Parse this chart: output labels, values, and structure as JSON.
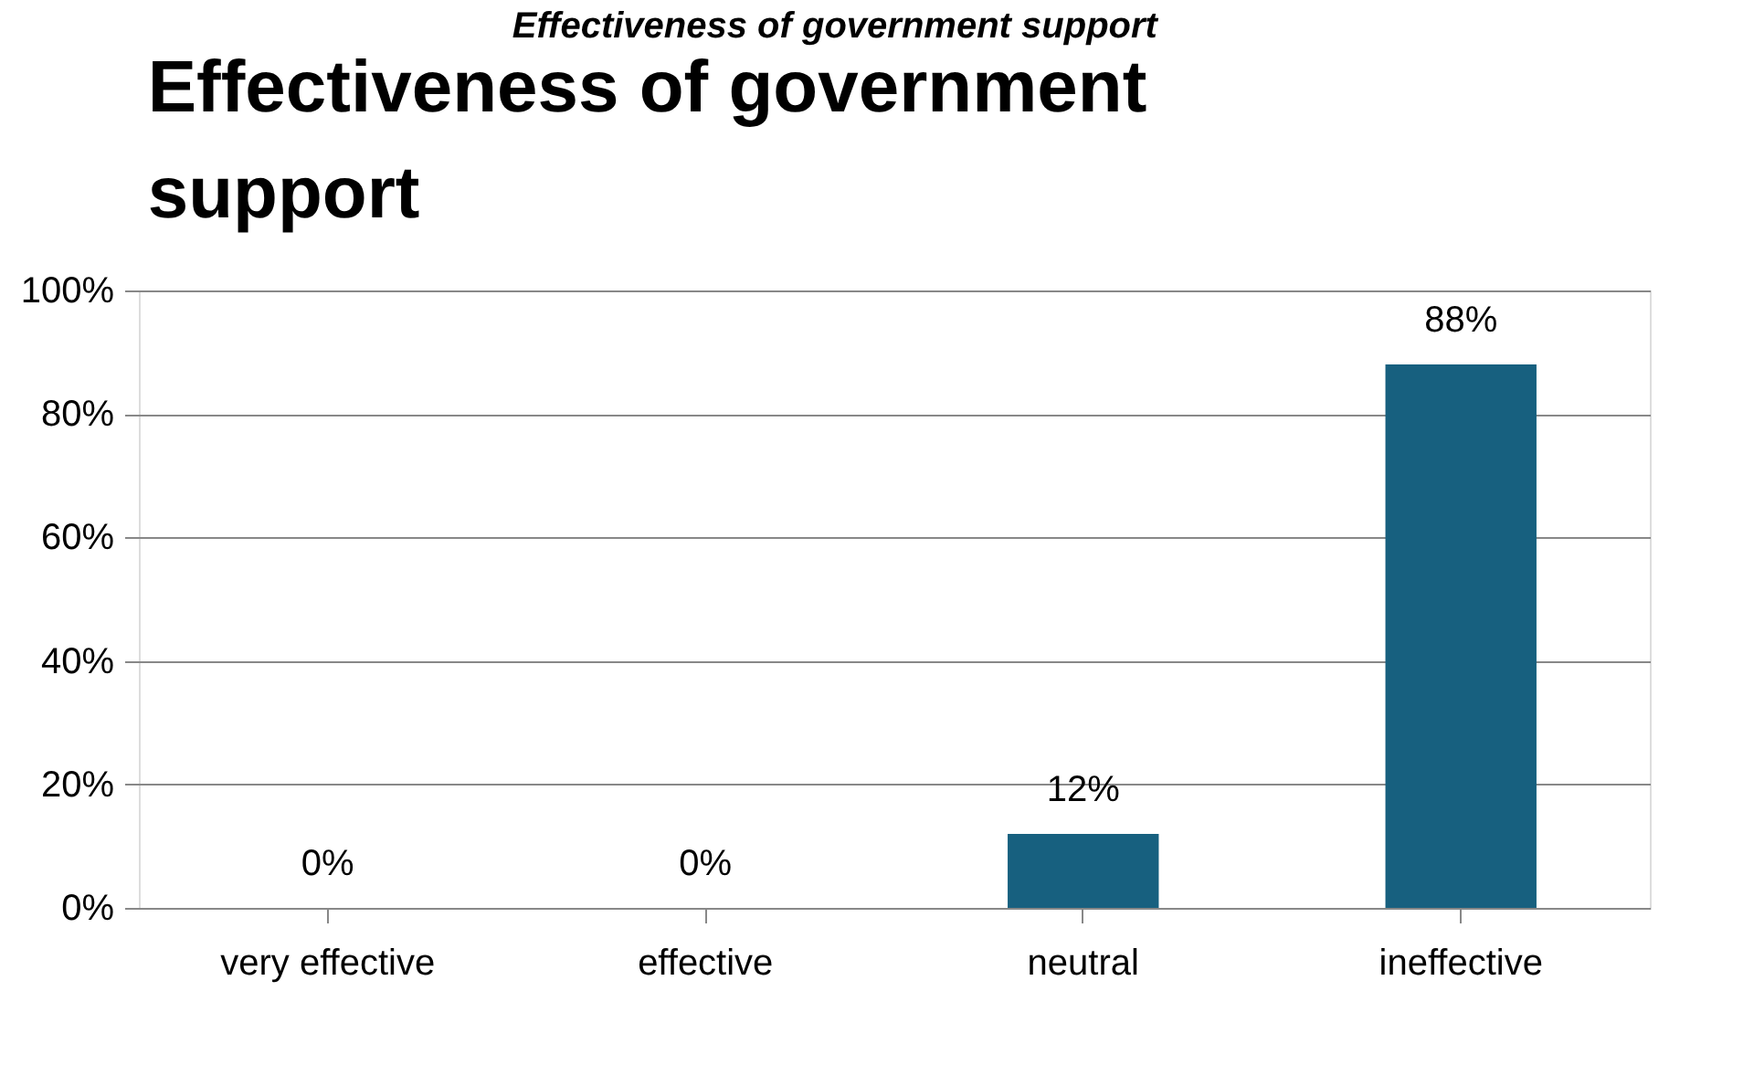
{
  "chart_data": {
    "type": "bar",
    "title": "Effectiveness of government support",
    "annotations": [
      "Effectiveness of government support"
    ],
    "categories": [
      "very effective",
      "effective",
      "neutral",
      "ineffective"
    ],
    "values": [
      0,
      0,
      12,
      88
    ],
    "color": "#17607f",
    "ylim": [
      0,
      100
    ],
    "yticks": [
      {
        "value": 0,
        "label": "0%"
      },
      {
        "value": 20,
        "label": "20%"
      },
      {
        "value": 40,
        "label": "40%"
      },
      {
        "value": 60,
        "label": "60%"
      },
      {
        "value": 80,
        "label": "80%"
      },
      {
        "value": 100,
        "label": "100%"
      }
    ],
    "value_labels": [
      "0%",
      "0%",
      "12%",
      "88%"
    ],
    "grid": "y"
  }
}
